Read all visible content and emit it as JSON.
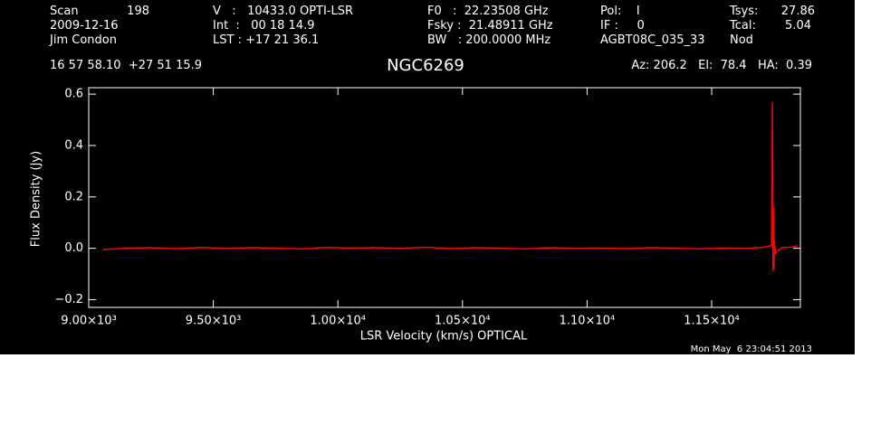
{
  "header": {
    "scan_label": "Scan",
    "scan": "198",
    "date": "2009-12-16",
    "observer": "Jim Condon",
    "velocity": "V   :   10433.0 OPTI-LSR",
    "integration": "Int  :   00 18 14.9",
    "lst": "LST : +17 21 36.1",
    "f0": "F0   :  22.23508 GHz",
    "fsky": "Fsky :  21.48911 GHz",
    "bw": "BW   : 200.0000 MHz",
    "pol": "Pol:    I",
    "if": "IF :     0",
    "project": "AGBT08C_035_33",
    "tsys_label": "Tsys:",
    "tsys": "27.86",
    "tcal_label": "Tcal:",
    "tcal": "5.04",
    "procedure": "Nod",
    "coords": "16 57 58.10  +27 51 15.9",
    "pointing": "Az: 206.2   El:  78.4   HA:  0.39",
    "timestamp": "Mon May  6 23:04:51 2013"
  },
  "chart_data": {
    "type": "line",
    "title": "NGC6269",
    "x_label": "LSR Velocity (km/s) OPTICAL",
    "y_label": "Flux Density (Jy)",
    "color": "#ff0000",
    "x": [
      9055,
      9150,
      9250,
      9350,
      9450,
      9550,
      9650,
      9750,
      9850,
      9950,
      10050,
      10150,
      10250,
      10350,
      10450,
      10550,
      10650,
      10750,
      10850,
      10950,
      11050,
      11150,
      11250,
      11350,
      11450,
      11550,
      11650,
      11700,
      11740,
      11744,
      11746,
      11748,
      11750,
      11752,
      11756,
      11780,
      11820,
      11845
    ],
    "values": [
      -0.005,
      0.001,
      0.002,
      -0.001,
      0.003,
      0.0,
      0.002,
      0.001,
      -0.002,
      0.003,
      0.001,
      0.002,
      0.0,
      0.004,
      -0.001,
      0.002,
      0.001,
      -0.002,
      0.002,
      0.0,
      0.001,
      -0.001,
      0.002,
      0.001,
      -0.002,
      0.001,
      0.0,
      0.003,
      0.01,
      0.57,
      -0.09,
      0.16,
      -0.08,
      0.03,
      -0.02,
      0.002,
      0.004,
      0.01
    ],
    "xlim": [
      9000,
      11856
    ],
    "ylim": [
      -0.23,
      0.625
    ],
    "xticks": [
      {
        "value": 9000,
        "label": "9.00×10³"
      },
      {
        "value": 9500,
        "label": "9.50×10³"
      },
      {
        "value": 10000,
        "label": "1.00×10⁴"
      },
      {
        "value": 10500,
        "label": "1.05×10⁴"
      },
      {
        "value": 11000,
        "label": "1.10×10⁴"
      },
      {
        "value": 11500,
        "label": "1.15×10⁴"
      }
    ],
    "yticks": [
      {
        "value": -0.2,
        "label": "−0.2"
      },
      {
        "value": 0,
        "label": "0.0"
      },
      {
        "value": 0.2,
        "label": "0.2"
      },
      {
        "value": 0.4,
        "label": "0.4"
      },
      {
        "value": 0.6,
        "label": "0.6"
      }
    ]
  }
}
